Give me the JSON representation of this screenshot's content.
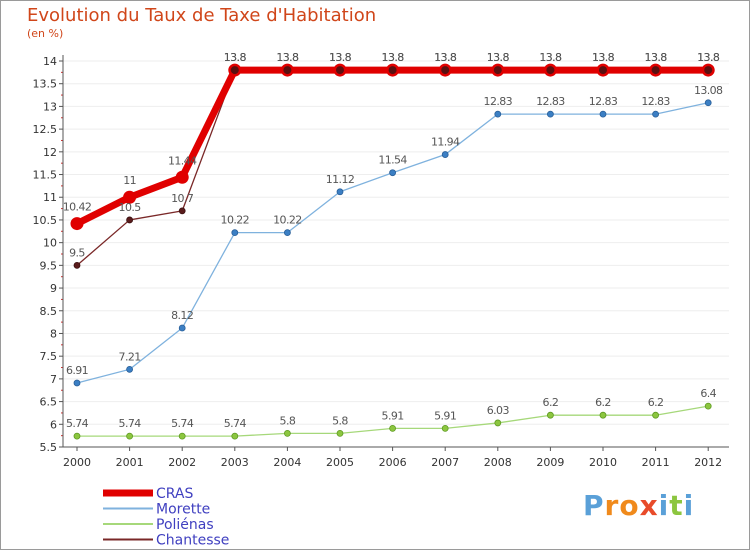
{
  "title": "Evolution du Taux de Taxe d'Habitation",
  "unit_label": "(en %)",
  "logo": {
    "letters": [
      "P",
      "r",
      "o",
      "x",
      "i",
      "t",
      "i"
    ],
    "colors": [
      "#5aa0d8",
      "#f08a1c",
      "#f08a1c",
      "#e84b2a",
      "#5aa0d8",
      "#8cc63f",
      "#5aa0d8"
    ]
  },
  "colors": {
    "title": "#d0461a",
    "axis": "#555555",
    "grid": "#eeeeee",
    "legend_text": "#4040c0"
  },
  "chart_data": {
    "type": "line",
    "title": "Evolution du Taux de Taxe d'Habitation",
    "ylabel": "(en %)",
    "xlabel": "",
    "x": [
      "2000",
      "2001",
      "2002",
      "2003",
      "2004",
      "2005",
      "2006",
      "2007",
      "2008",
      "2009",
      "2010",
      "2011",
      "2012"
    ],
    "ylim": [
      5.5,
      14
    ],
    "yticks": [
      "5.5",
      "6",
      "6.5",
      "7",
      "7.5",
      "8",
      "8.5",
      "9",
      "9.5",
      "10",
      "10.5",
      "11",
      "11.5",
      "12",
      "12.5",
      "13",
      "13.5",
      "14"
    ],
    "grid": "horizontal",
    "legend_position": "bottom-left",
    "series": [
      {
        "name": "CRAS",
        "color": "#e00000",
        "values": [
          10.42,
          11,
          11.44,
          13.8,
          13.8,
          13.8,
          13.8,
          13.8,
          13.8,
          13.8,
          13.8,
          13.8,
          13.8
        ],
        "labels": [
          "10.42",
          "11",
          "11.44",
          "13.8",
          "13.8",
          "13.8",
          "13.8",
          "13.8",
          "13.8",
          "13.8",
          "13.8",
          "13.8",
          "13.8"
        ]
      },
      {
        "name": "Morette",
        "color": "#7fb2de",
        "values": [
          6.91,
          7.21,
          8.12,
          10.22,
          10.22,
          11.12,
          11.54,
          11.94,
          12.83,
          12.83,
          12.83,
          12.83,
          13.08
        ],
        "labels": [
          "6.91",
          "7.21",
          "8.12",
          "10.22",
          "10.22",
          "11.12",
          "11.54",
          "11.94",
          "12.83",
          "12.83",
          "12.83",
          "12.83",
          "13.08"
        ]
      },
      {
        "name": "Poliénas",
        "color": "#a6d87a",
        "values": [
          5.74,
          5.74,
          5.74,
          5.74,
          5.8,
          5.8,
          5.91,
          5.91,
          6.03,
          6.2,
          6.2,
          6.2,
          6.4
        ],
        "labels": [
          "5.74",
          "5.74",
          "5.74",
          "5.74",
          "5.8",
          "5.8",
          "5.91",
          "5.91",
          "6.03",
          "6.2",
          "6.2",
          "6.2",
          "6.4"
        ]
      },
      {
        "name": "Chantesse",
        "color": "#7a2828",
        "values": [
          9.5,
          10.5,
          10.7,
          13.8,
          13.8,
          13.8,
          13.8,
          13.8,
          13.8,
          13.8,
          13.8,
          13.8,
          13.8
        ],
        "labels": [
          "9.5",
          "10.5",
          "10.7",
          "13.8",
          "13.8",
          "13.8",
          "13.8",
          "13.8",
          "13.8",
          "13.8",
          "13.8",
          "13.8",
          "13.8"
        ]
      }
    ]
  }
}
